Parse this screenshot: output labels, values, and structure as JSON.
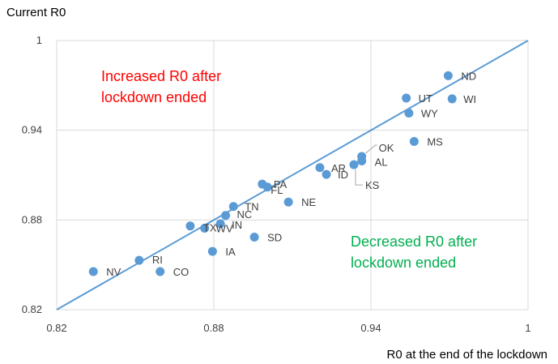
{
  "chart_data": {
    "type": "scatter",
    "title": "",
    "xlabel": "R0 at the end of the lockdown",
    "ylabel": "Current R0",
    "xlim": [
      0.82,
      1.0
    ],
    "ylim": [
      0.82,
      1.0
    ],
    "x_ticks": [
      "0.82",
      "0.88",
      "0.94",
      "1"
    ],
    "y_ticks": [
      "0.82",
      "0.88",
      "0.94",
      "1"
    ],
    "grid": true,
    "point_color": "#5b9bd5",
    "reference_line": {
      "x": [
        0.82,
        1.0
      ],
      "y": [
        0.82,
        1.0
      ],
      "color": "#5b9bd5"
    },
    "points": [
      {
        "label": "ND",
        "x": 0.9695,
        "y": 0.9765
      },
      {
        "label": "UT",
        "x": 0.9535,
        "y": 0.9615
      },
      {
        "label": "WI",
        "x": 0.971,
        "y": 0.961
      },
      {
        "label": "WY",
        "x": 0.9545,
        "y": 0.9515
      },
      {
        "label": "MS",
        "x": 0.9565,
        "y": 0.9325
      },
      {
        "label": "OK",
        "x": 0.9365,
        "y": 0.9225
      },
      {
        "label": "AL",
        "x": 0.9365,
        "y": 0.9195
      },
      {
        "label": "KS",
        "x": 0.9335,
        "y": 0.917
      },
      {
        "label": "AR",
        "x": 0.9205,
        "y": 0.915
      },
      {
        "label": "ID",
        "x": 0.923,
        "y": 0.9105
      },
      {
        "label": "PA",
        "x": 0.8985,
        "y": 0.904
      },
      {
        "label": "FL",
        "x": 0.9005,
        "y": 0.902
      },
      {
        "label": "NE",
        "x": 0.9085,
        "y": 0.892
      },
      {
        "label": "TN",
        "x": 0.8875,
        "y": 0.889
      },
      {
        "label": "NC",
        "x": 0.8845,
        "y": 0.883
      },
      {
        "label": "TX",
        "x": 0.871,
        "y": 0.876
      },
      {
        "label": "WV",
        "x": 0.8765,
        "y": 0.8745
      },
      {
        "label": "IN",
        "x": 0.8825,
        "y": 0.8775
      },
      {
        "label": "SD",
        "x": 0.8955,
        "y": 0.8685
      },
      {
        "label": "IA",
        "x": 0.8795,
        "y": 0.859
      },
      {
        "label": "RI",
        "x": 0.8515,
        "y": 0.853
      },
      {
        "label": "NV",
        "x": 0.834,
        "y": 0.8455
      },
      {
        "label": "CO",
        "x": 0.8595,
        "y": 0.8455
      }
    ],
    "annotations": [
      {
        "text": "Increased R0 after",
        "color": "#ff0000"
      },
      {
        "text": "lockdown ended",
        "color": "#ff0000"
      },
      {
        "text": "Decreased R0 after",
        "color": "#00b050"
      },
      {
        "text": "lockdown ended",
        "color": "#00b050"
      }
    ]
  }
}
